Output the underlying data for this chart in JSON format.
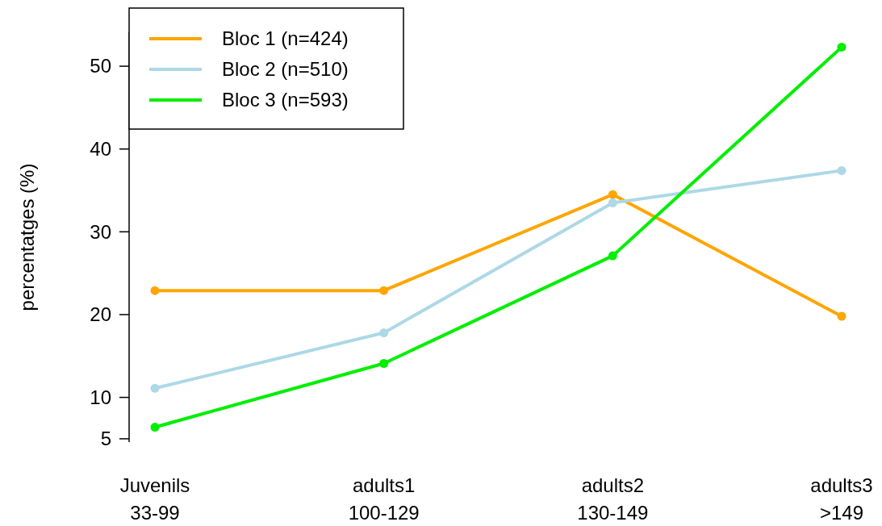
{
  "chart_data": {
    "type": "line",
    "ylabel": "percentatges (%)",
    "categories": [
      "Juvenils\n33-99",
      "adults1\n100-129",
      "adults2\n130-149",
      "adults3\n>149"
    ],
    "series": [
      {
        "name": "Bloc 1 (n=424)",
        "color": "#ffa500",
        "values": [
          22.9,
          22.9,
          34.5,
          19.8
        ]
      },
      {
        "name": "Bloc 2 (n=510)",
        "color": "#add8e6",
        "values": [
          11.1,
          17.8,
          33.5,
          37.4
        ]
      },
      {
        "name": "Bloc 3 (n=593)",
        "color": "#00ee00",
        "values": [
          6.4,
          14.1,
          27.1,
          52.3
        ]
      }
    ],
    "ylim": [
      4.6,
      54.1
    ],
    "yticks": [
      5,
      10,
      20,
      30,
      40,
      50
    ],
    "grid": false,
    "legend": "top left",
    "marker": "circle",
    "line_style": "solid"
  }
}
